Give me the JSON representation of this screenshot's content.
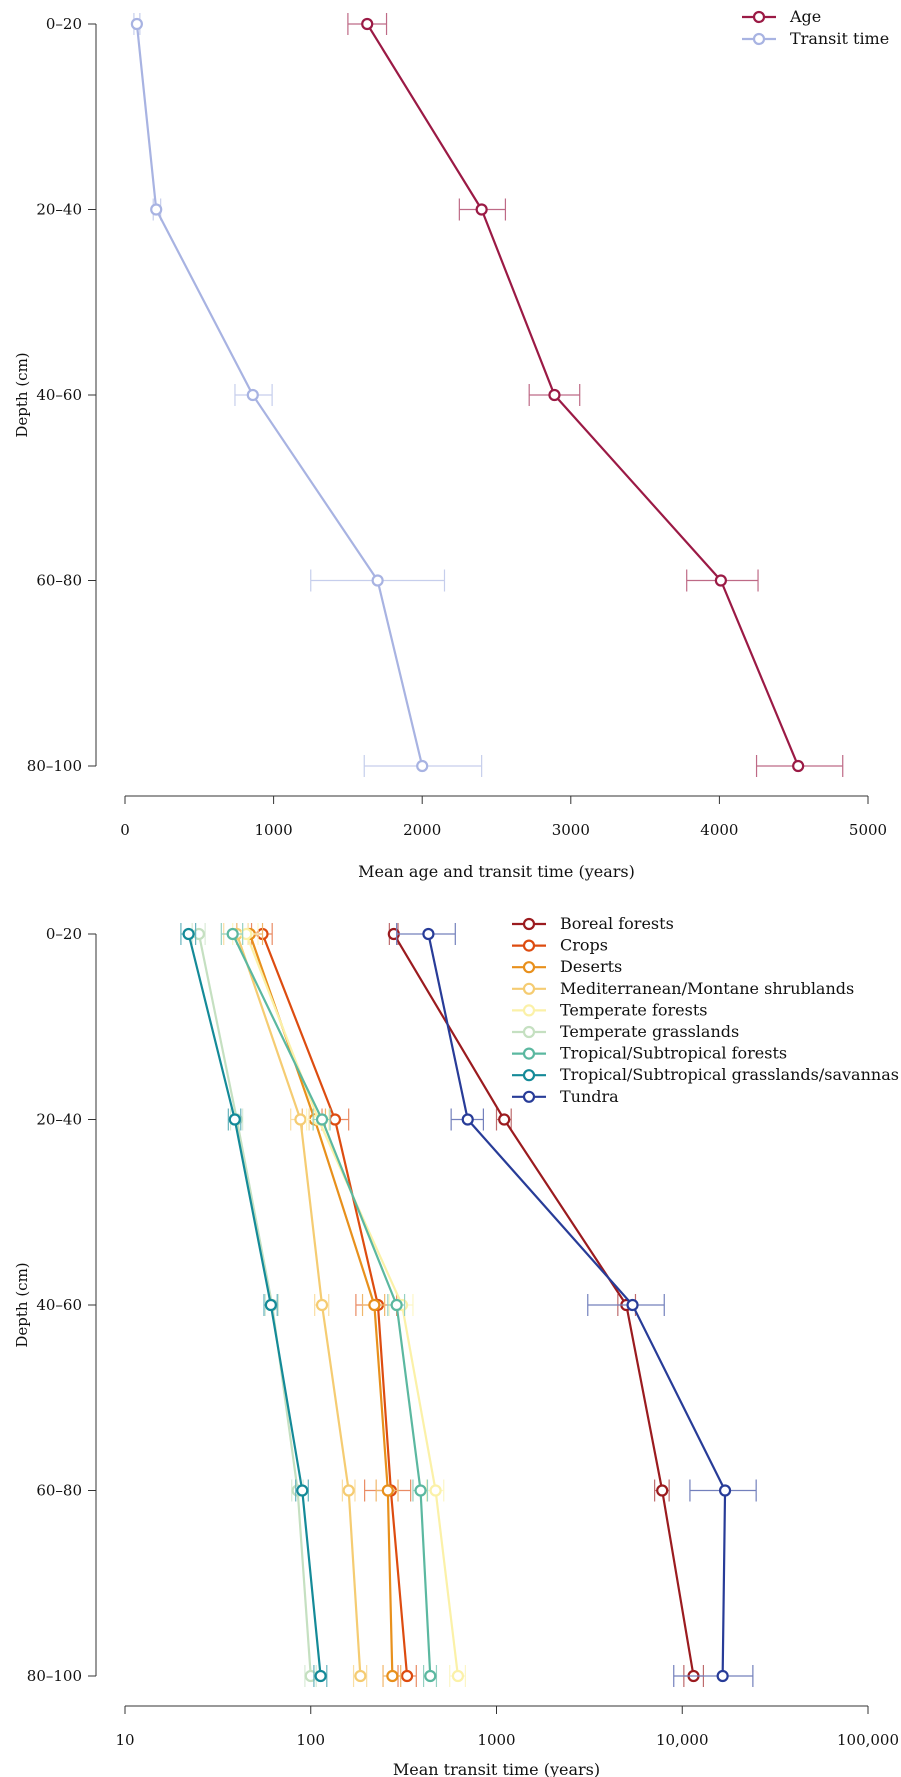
{
  "chart_data": [
    {
      "type": "line",
      "orientation": "horizontal-x-value",
      "xlabel": "Mean age and transit time (years)",
      "ylabel": "Depth (cm)",
      "xlim": [
        0,
        5000
      ],
      "x_ticks": [
        0,
        1000,
        2000,
        3000,
        4000,
        5000
      ],
      "x_tick_labels": [
        "0",
        "1000",
        "2000",
        "3000",
        "4000",
        "5000"
      ],
      "categories": [
        "0–20",
        "20–40",
        "40–60",
        "60–80",
        "80–100"
      ],
      "legend_position": "top-right",
      "grid": false,
      "series": [
        {
          "name": "Age",
          "color": "#9b1a45",
          "values": [
            1630,
            2400,
            2890,
            4010,
            4530
          ],
          "err_low": [
            1500,
            2250,
            2720,
            3780,
            4250
          ],
          "err_high": [
            1760,
            2560,
            3060,
            4260,
            4830
          ]
        },
        {
          "name": "Transit time",
          "color": "#a8b3e2",
          "values": [
            80,
            210,
            860,
            1700,
            2000
          ],
          "err_low": [
            60,
            190,
            740,
            1250,
            1610
          ],
          "err_high": [
            100,
            240,
            990,
            2150,
            2400
          ]
        }
      ]
    },
    {
      "type": "line",
      "orientation": "horizontal-x-value",
      "xlabel": "Mean transit time (years)",
      "ylabel": "Depth (cm)",
      "xscale": "log",
      "xlim": [
        10,
        100000
      ],
      "x_ticks": [
        10,
        100,
        1000,
        10000,
        100000
      ],
      "x_tick_labels": [
        "10",
        "100",
        "1000",
        "10,000",
        "100,000"
      ],
      "categories": [
        "0–20",
        "20–40",
        "40–60",
        "60–80",
        "80–100"
      ],
      "legend_position": "top-right",
      "grid": false,
      "series": [
        {
          "name": "Boreal forests",
          "color": "#9b1b1f",
          "values": [
            280,
            1100,
            5000,
            7800,
            11500
          ],
          "err_low": [
            265,
            1000,
            4500,
            7100,
            10200
          ],
          "err_high": [
            295,
            1200,
            5600,
            8500,
            13000
          ]
        },
        {
          "name": "Crops",
          "color": "#dd4c10",
          "values": [
            55,
            135,
            230,
            270,
            330
          ],
          "err_low": [
            48,
            115,
            175,
            195,
            295
          ],
          "err_high": [
            62,
            160,
            290,
            345,
            370
          ]
        },
        {
          "name": "Deserts",
          "color": "#e8901c",
          "values": [
            47,
            105,
            220,
            260,
            275
          ],
          "err_low": [
            40,
            90,
            190,
            225,
            245
          ],
          "err_high": [
            55,
            120,
            250,
            295,
            305
          ]
        },
        {
          "name": "Mediterranean/Montane shrublands",
          "color": "#f5cc72",
          "values": [
            40,
            88,
            115,
            160,
            185
          ],
          "err_low": [
            34,
            78,
            105,
            148,
            170
          ],
          "err_high": [
            46,
            98,
            125,
            173,
            200
          ]
        },
        {
          "name": "Temperate forests",
          "color": "#fbf1a8",
          "values": [
            45,
            110,
            310,
            470,
            620
          ],
          "err_low": [
            38,
            95,
            265,
            420,
            560
          ],
          "err_high": [
            52,
            125,
            355,
            520,
            680
          ]
        },
        {
          "name": "Temperate grasslands",
          "color": "#c5e0c1",
          "values": [
            25,
            40,
            62,
            85,
            100
          ],
          "err_low": [
            23,
            37,
            57,
            79,
            93
          ],
          "err_high": [
            27,
            43,
            67,
            91,
            107
          ]
        },
        {
          "name": "Tropical/Subtropical forests",
          "color": "#5bb8a0",
          "values": [
            38,
            115,
            290,
            390,
            440
          ],
          "err_low": [
            33,
            103,
            260,
            355,
            405
          ],
          "err_high": [
            43,
            127,
            320,
            425,
            475
          ]
        },
        {
          "name": "Tropical/Subtropical grasslands/savannas",
          "color": "#148a98",
          "values": [
            22,
            39,
            61,
            90,
            113
          ],
          "err_low": [
            20,
            36,
            56,
            83,
            104
          ],
          "err_high": [
            24,
            42,
            66,
            97,
            122
          ]
        },
        {
          "name": "Tundra",
          "color": "#283c98",
          "values": [
            430,
            700,
            5400,
            17000,
            16500
          ],
          "err_low": [
            290,
            570,
            3100,
            11000,
            9000
          ],
          "err_high": [
            600,
            850,
            8000,
            25000,
            24000
          ]
        }
      ]
    }
  ]
}
